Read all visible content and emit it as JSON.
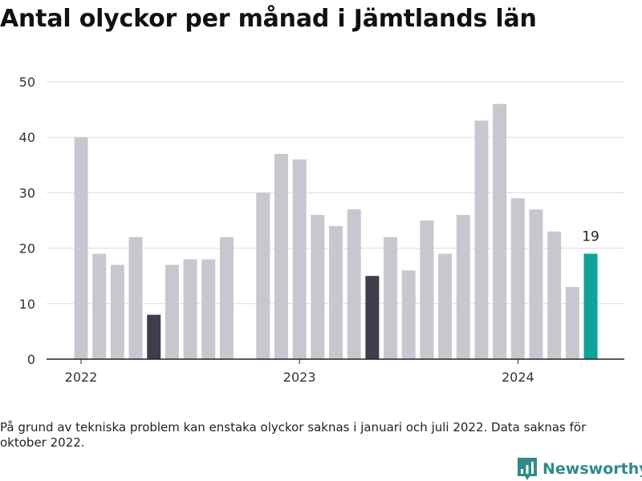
{
  "title": "Antal olyckor per månad i Jämtlands län",
  "footnote": "På grund av tekniska problem kan enstaka olyckor saknas i januari och juli 2022. Data saknas för oktober 2022.",
  "brand": "Newsworthy",
  "colors": {
    "bar": "#c8c7cf",
    "highlight": "#3e3d4a",
    "latest": "#0fa39a",
    "grid": "#dddddd",
    "axis": "#222222",
    "brand": "#2e8b8a"
  },
  "chart_data": {
    "type": "bar",
    "title": "Antal olyckor per månad i Jämtlands län",
    "xlabel": "",
    "ylabel": "",
    "ylim": [
      0,
      50
    ],
    "yticks": [
      0,
      10,
      20,
      30,
      40,
      50
    ],
    "grid": true,
    "year_labels": [
      {
        "label": "2022",
        "index": 0
      },
      {
        "label": "2023",
        "index": 12
      },
      {
        "label": "2024",
        "index": 24
      }
    ],
    "x": [
      "2022-01",
      "2022-02",
      "2022-03",
      "2022-04",
      "2022-05",
      "2022-06",
      "2022-07",
      "2022-08",
      "2022-09",
      "2022-10",
      "2022-11",
      "2022-12",
      "2023-01",
      "2023-02",
      "2023-03",
      "2023-04",
      "2023-05",
      "2023-06",
      "2023-07",
      "2023-08",
      "2023-09",
      "2023-10",
      "2023-11",
      "2023-12",
      "2024-01",
      "2024-02",
      "2024-03",
      "2024-04",
      "2024-05"
    ],
    "values": [
      40,
      19,
      17,
      22,
      8,
      17,
      18,
      18,
      22,
      null,
      30,
      37,
      36,
      26,
      24,
      27,
      15,
      22,
      16,
      25,
      19,
      26,
      43,
      46,
      29,
      27,
      23,
      13,
      19
    ],
    "highlight_indices": [
      4,
      16
    ],
    "latest_index": 28,
    "latest_label": "19"
  }
}
